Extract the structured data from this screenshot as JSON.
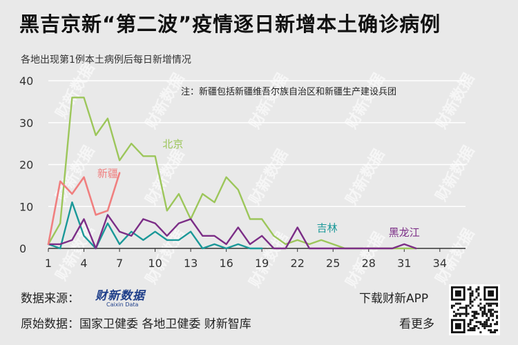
{
  "title": "黑吉京新“第二波”疫情逐日新增本土确诊病例",
  "subtitle": "各地出现第1例本土病例后每日新增情况",
  "note": "注：新疆包括新疆维吾尔族自治区和新疆生产建设兵团",
  "watermark": "财新数据",
  "footer": {
    "source_label": "数据来源：",
    "logo_text": "财新数据",
    "logo_sub": "Caixin Data",
    "original_label": "原始数据：国家卫健委 各地卫健委 财新智库",
    "download": "下载财新APP",
    "more": "看更多"
  },
  "colors": {
    "beijing": "#9cc65a",
    "xinjiang": "#f07f7f",
    "jilin": "#1a9898",
    "heilongjiang": "#7b2d86",
    "background": "#e9e9e9",
    "grid": "#ffffff"
  },
  "chart_data": {
    "type": "line",
    "ylim": [
      0,
      40
    ],
    "yticks": [
      0,
      10,
      20,
      30,
      40
    ],
    "xlim": [
      1,
      35
    ],
    "xticks": [
      1,
      4,
      7,
      10,
      13,
      16,
      19,
      22,
      25,
      28,
      31,
      34
    ],
    "grid": "horizontal",
    "series": [
      {
        "name": "北京",
        "color_key": "beijing",
        "label_day": 11.5,
        "label_value": 24,
        "x": [
          1,
          2,
          3,
          4,
          5,
          6,
          7,
          8,
          9,
          10,
          11,
          12,
          13,
          14,
          15,
          16,
          17,
          18,
          19,
          20,
          21,
          22,
          23,
          24,
          25,
          26,
          27,
          28,
          29,
          30,
          31,
          32
        ],
        "values": [
          1,
          6,
          36,
          36,
          27,
          31,
          21,
          25,
          22,
          22,
          9,
          13,
          7,
          13,
          11,
          17,
          14,
          7,
          7,
          3,
          1,
          2,
          1,
          2,
          1,
          0,
          0,
          0,
          0,
          0,
          0,
          0
        ]
      },
      {
        "name": "新疆",
        "color_key": "xinjiang",
        "label_day": 6,
        "label_value": 17,
        "x": [
          1,
          2,
          3,
          4,
          5,
          6,
          7
        ],
        "values": [
          1,
          16,
          13,
          17,
          8,
          9,
          18
        ]
      },
      {
        "name": "吉林",
        "color_key": "jilin",
        "label_day": 24.5,
        "label_value": 4,
        "x": [
          1,
          2,
          3,
          4,
          5,
          6,
          7,
          8,
          9,
          10,
          11,
          12,
          13,
          14,
          15,
          16,
          17,
          18,
          19
        ],
        "values": [
          1,
          0,
          11,
          3,
          0,
          6,
          1,
          4,
          2,
          4,
          2,
          2,
          4,
          0,
          1,
          0,
          1,
          0,
          0
        ]
      },
      {
        "name": "黑龙江",
        "color_key": "heilongjiang",
        "label_day": 31,
        "label_value": 3,
        "x": [
          1,
          2,
          3,
          4,
          5,
          6,
          7,
          8,
          9,
          10,
          11,
          12,
          13,
          14,
          15,
          16,
          17,
          18,
          19,
          20,
          21,
          22,
          23,
          24,
          25,
          26,
          27,
          28,
          29,
          30,
          31,
          32
        ],
        "values": [
          1,
          1,
          2,
          7,
          0,
          8,
          4,
          3,
          7,
          6,
          3,
          6,
          7,
          3,
          3,
          1,
          5,
          1,
          3,
          0,
          0,
          5,
          0,
          0,
          0,
          0,
          0,
          0,
          0,
          0,
          1,
          0
        ]
      }
    ]
  }
}
